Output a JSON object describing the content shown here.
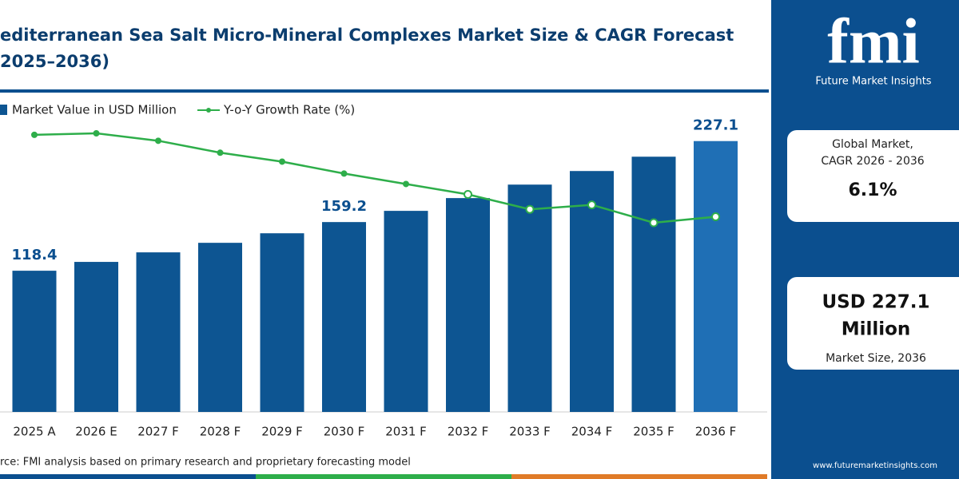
{
  "chart_data": {
    "type": "bar",
    "title": [
      "editerranean Sea Salt Micro-Mineral Complexes Market Size & CAGR Forecast",
      "2025–2036)"
    ],
    "categories": [
      "2025 A",
      "2026 E",
      "2027 F",
      "2028 F",
      "2029 F",
      "2030 F",
      "2031 F",
      "2032 F",
      "2033 F",
      "2034 F",
      "2035 F",
      "2036 F"
    ],
    "series": [
      {
        "name": "Market Value in USD Million",
        "type": "bar",
        "color": "#0d5592",
        "highlight_color": "#1f6fb5",
        "values": [
          118.4,
          125.8,
          133.8,
          141.8,
          149.8,
          159.2,
          168.6,
          179.3,
          190.6,
          202.0,
          214.0,
          227.1
        ],
        "value_labels": [
          "118.4",
          null,
          null,
          null,
          null,
          "159.2",
          null,
          null,
          null,
          null,
          null,
          "227.1"
        ]
      },
      {
        "name": "Y-o-Y Growth Rate (%)",
        "type": "line",
        "axis": "y2",
        "color": "#2eae4a",
        "values": [
          6.8,
          6.85,
          6.6,
          6.2,
          5.9,
          5.5,
          5.15,
          4.8,
          4.3,
          4.45,
          3.85,
          4.05
        ]
      }
    ],
    "source": "rce: FMI analysis based on primary research and proprietary forecasting model"
  },
  "panel": {
    "logo": "fmi",
    "brand": "Future Market Insights",
    "cagr_label": [
      "Global Market,",
      "CAGR 2026 - 2036"
    ],
    "cagr_value": "6.1%",
    "size_value": [
      "USD 227.1",
      "Million"
    ],
    "size_label": "Market Size, 2036",
    "website": "www.futuremarketinsights.com"
  }
}
